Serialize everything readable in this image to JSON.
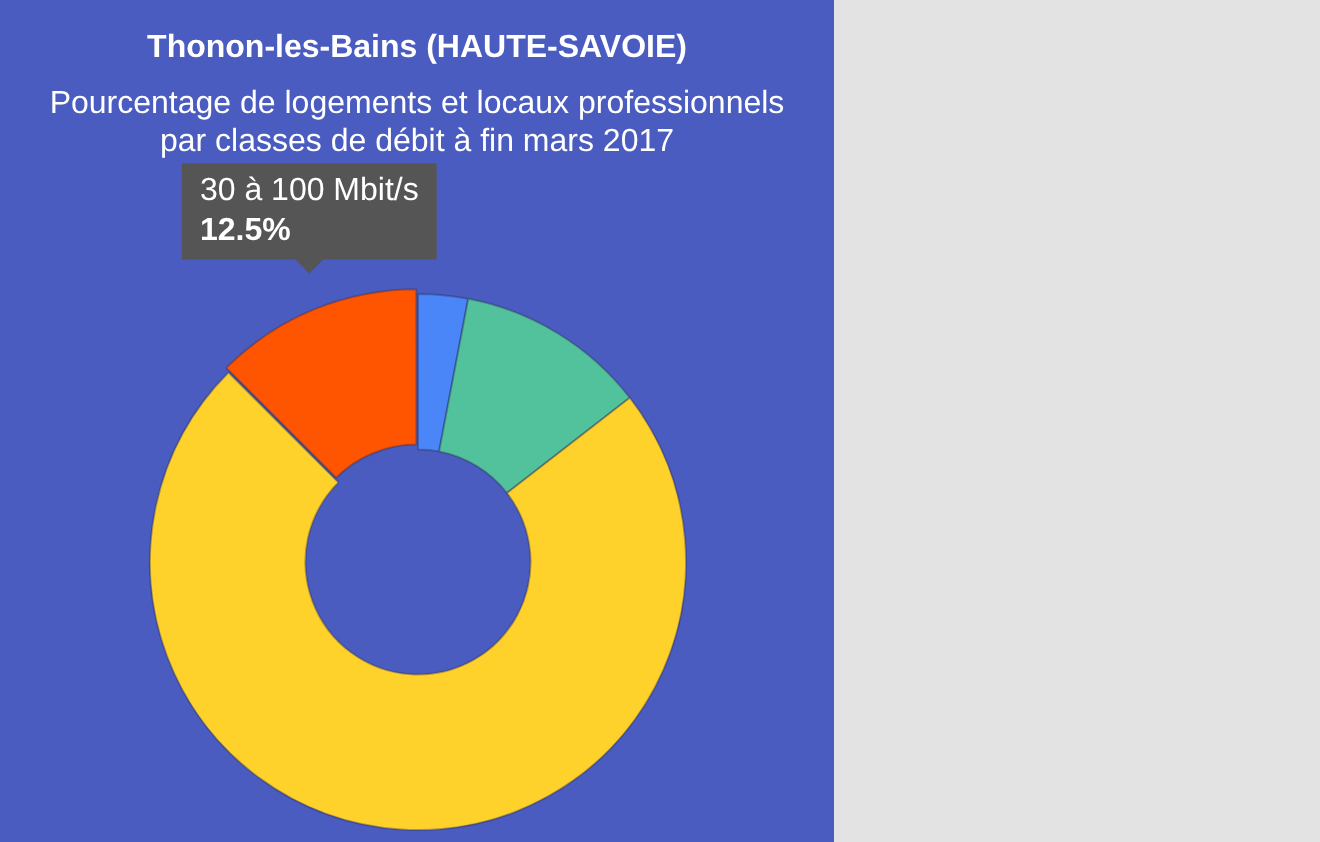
{
  "chart_data": {
    "type": "donut",
    "title": "Thonon-les-Bains (HAUTE-SAVOIE)",
    "subtitle": "Pourcentage de logements et locaux professionnels par classes de débit à fin mars 2017",
    "categories": [
      null,
      null,
      null,
      "30 à 100 Mbit/s"
    ],
    "values": [
      3,
      11.5,
      73,
      12.5
    ],
    "colors": [
      "#4a86f7",
      "#52c29c",
      "#fed22b",
      "#ff5500"
    ],
    "value_labels": [
      null,
      null,
      null,
      "12.5%"
    ],
    "legend": false
  }
}
